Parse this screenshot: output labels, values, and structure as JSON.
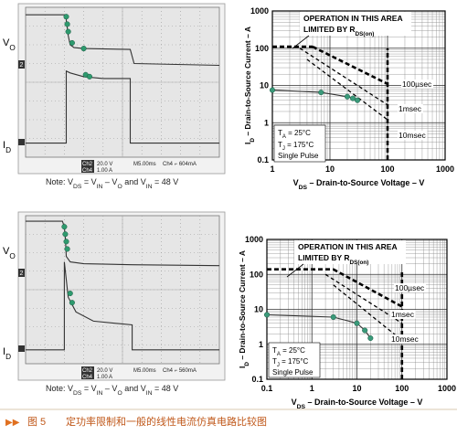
{
  "chart_data": [
    {
      "type": "scope",
      "grid_divisions": [
        10,
        8
      ],
      "xlim": [
        0,
        10
      ],
      "ylim": [
        0,
        8
      ],
      "trace_labels": [
        [
          {
            "text": "V"
          },
          {
            "text": "O",
            "sub": true
          }
        ],
        [
          {
            "text": "I"
          },
          {
            "text": "D",
            "sub": true
          }
        ]
      ],
      "channel_marker": "2",
      "readout": [
        "Ch2",
        "20.0 V",
        "M5.00ms",
        "Ch4 ⌐ 604mA",
        "Ch4",
        "1.00 A"
      ],
      "note": [
        {
          "text": "Note: V"
        },
        {
          "text": "DS",
          "sub": true
        },
        {
          "text": " = V"
        },
        {
          "text": "IN",
          "sub": true
        },
        {
          "text": " – V"
        },
        {
          "text": "O",
          "sub": true
        },
        {
          "text": " and V"
        },
        {
          "text": "IN",
          "sub": true
        },
        {
          "text": " = 48 V"
        }
      ],
      "series": [
        {
          "color": "#333333",
          "line_style": "solid",
          "x": [
            0,
            2.1,
            2.1,
            2.15,
            2.2,
            2.3,
            2.5,
            3,
            5.4,
            5.6,
            10
          ],
          "values": [
            7.6,
            7.6,
            7.3,
            6.9,
            6.5,
            6.0,
            5.85,
            5.8,
            5.75,
            5.0,
            4.9
          ]
        },
        {
          "color": "#333333",
          "line_style": "solid",
          "x": [
            0,
            2.1,
            2.1,
            2.3,
            3,
            4,
            5.4,
            5.4,
            10
          ],
          "values": [
            0.75,
            0.75,
            4.6,
            4.5,
            4.3,
            4.2,
            4.2,
            0.75,
            0.75
          ]
        },
        {
          "color": "#2e9a6e",
          "line_style": "none",
          "markers": true,
          "x": [
            2.1,
            2.15,
            2.2,
            2.4,
            3.0,
            3.1,
            3.3
          ],
          "values": [
            7.5,
            7.1,
            6.7,
            6.1,
            5.8,
            4.4,
            4.3
          ]
        }
      ]
    },
    {
      "type": "soa",
      "log_x": true,
      "log_y": true,
      "grid": true,
      "xlim": [
        1,
        1000
      ],
      "ylim": [
        0.1,
        1000
      ],
      "xticks": [
        1,
        10,
        100,
        1000
      ],
      "yticks": [
        0.1,
        1,
        10,
        100,
        1000
      ],
      "xlabel": [
        {
          "text": "V"
        },
        {
          "text": "DS",
          "sub": true
        },
        {
          "text": " – Drain-to-Source Voltage – V"
        }
      ],
      "ylabel": [
        {
          "text": "I"
        },
        {
          "text": "D",
          "sub": true
        },
        {
          "text": " – Drain-to-Source Current – A"
        }
      ],
      "annotations": [
        [
          {
            "text": "OPERATION IN THIS AREA"
          }
        ],
        [
          {
            "text": "LIMITED BY R"
          },
          {
            "text": "DS(on)",
            "sub": true
          }
        ],
        [
          {
            "text": "100µsec"
          }
        ],
        [
          {
            "text": "1msec"
          }
        ],
        [
          {
            "text": "10msec"
          }
        ],
        [
          {
            "text": "T"
          },
          {
            "text": "A",
            "sub": true
          },
          {
            "text": " = 25°C"
          }
        ],
        [
          {
            "text": "T"
          },
          {
            "text": "J",
            "sub": true
          },
          {
            "text": " = 175°C"
          }
        ],
        [
          {
            "text": "Single Pulse"
          }
        ]
      ],
      "series": [
        {
          "color": "#000000",
          "line_style": "dashed-thick",
          "x": [
            1,
            5
          ],
          "values": [
            110,
            110
          ]
        },
        {
          "color": "#000000",
          "line_style": "dashed-thick",
          "x": [
            5,
            100
          ],
          "values": [
            110,
            11
          ]
        },
        {
          "color": "#000000",
          "line_style": "dashed",
          "x": [
            3,
            100
          ],
          "values": [
            100,
            3
          ]
        },
        {
          "color": "#000000",
          "line_style": "dashed",
          "x": [
            4,
            100
          ],
          "values": [
            50,
            1.2
          ]
        },
        {
          "color": "#000000",
          "line_style": "dashed-thick",
          "x": [
            100,
            100
          ],
          "values": [
            0.1,
            100
          ]
        },
        {
          "color": "#333333",
          "marker_color": "#3a9a7a",
          "line_style": "solid",
          "markers": true,
          "x": [
            1,
            7,
            20,
            25,
            30
          ],
          "values": [
            7.5,
            6.5,
            5,
            4.5,
            4
          ]
        }
      ]
    },
    {
      "type": "scope",
      "grid_divisions": [
        10,
        8
      ],
      "xlim": [
        0,
        10
      ],
      "ylim": [
        0,
        8
      ],
      "trace_labels": [
        [
          {
            "text": "V"
          },
          {
            "text": "O",
            "sub": true
          }
        ],
        [
          {
            "text": "I"
          },
          {
            "text": "D",
            "sub": true
          }
        ]
      ],
      "channel_marker": "2",
      "readout": [
        "Ch2",
        "20.0 V",
        "M5.00ms",
        "Ch4 ⌐ 560mA",
        "Ch4",
        "1.00 A"
      ],
      "note": [
        {
          "text": "Note: V"
        },
        {
          "text": "DS",
          "sub": true
        },
        {
          "text": " = V"
        },
        {
          "text": "IN",
          "sub": true
        },
        {
          "text": " – V"
        },
        {
          "text": "O",
          "sub": true
        },
        {
          "text": " and V"
        },
        {
          "text": "IN",
          "sub": true
        },
        {
          "text": " = 48 V"
        }
      ],
      "series": [
        {
          "color": "#333333",
          "line_style": "solid",
          "x": [
            0,
            1.9,
            2.0,
            2.05,
            2.1,
            2.3,
            3,
            5.5,
            10
          ],
          "values": [
            7.7,
            7.7,
            7.4,
            6.8,
            5.8,
            5.5,
            5.4,
            5.35,
            5.3
          ]
        },
        {
          "color": "#333333",
          "line_style": "solid",
          "x": [
            0,
            2.0,
            2.0,
            2.2,
            2.6,
            3.5,
            5.5,
            5.5,
            10
          ],
          "values": [
            0.75,
            0.75,
            5.5,
            3.6,
            2.8,
            2.3,
            2.1,
            0.75,
            0.75
          ]
        },
        {
          "color": "#2e9a6e",
          "line_style": "none",
          "markers": true,
          "x": [
            2.0,
            2.05,
            2.1,
            2.15,
            2.3,
            2.4
          ],
          "values": [
            7.4,
            7.0,
            6.6,
            6.2,
            3.8,
            3.3
          ]
        }
      ]
    },
    {
      "type": "soa",
      "log_x": true,
      "log_y": true,
      "grid": true,
      "xlim": [
        0.1,
        1000
      ],
      "ylim": [
        0.1,
        1000
      ],
      "xticks": [
        0.1,
        1,
        10,
        100,
        1000
      ],
      "yticks": [
        0.1,
        1,
        10,
        100,
        1000
      ],
      "xlabel": [
        {
          "text": "V"
        },
        {
          "text": "DS",
          "sub": true
        },
        {
          "text": " – Drain-to-Source Voltage – V"
        }
      ],
      "ylabel": [
        {
          "text": "I"
        },
        {
          "text": "D",
          "sub": true
        },
        {
          "text": " – Drain-to-Source Current – A"
        }
      ],
      "annotations": [
        [
          {
            "text": "OPERATION IN THIS AREA"
          }
        ],
        [
          {
            "text": "LIMITED BY R"
          },
          {
            "text": "DS(on)",
            "sub": true
          }
        ],
        [
          {
            "text": "100µsec"
          }
        ],
        [
          {
            "text": "1msec"
          }
        ],
        [
          {
            "text": "10msec"
          }
        ],
        [
          {
            "text": "T"
          },
          {
            "text": "A",
            "sub": true
          },
          {
            "text": " = 25°C"
          }
        ],
        [
          {
            "text": "T"
          },
          {
            "text": "J",
            "sub": true
          },
          {
            "text": " = 175°C"
          }
        ],
        [
          {
            "text": "Single Pulse"
          }
        ]
      ],
      "series": [
        {
          "color": "#000000",
          "line_style": "dashed-thick",
          "x": [
            0.1,
            3
          ],
          "values": [
            140,
            140
          ]
        },
        {
          "color": "#000000",
          "line_style": "dashed-thick",
          "x": [
            3,
            100
          ],
          "values": [
            140,
            12
          ]
        },
        {
          "color": "#000000",
          "line_style": "dashed",
          "x": [
            2,
            100
          ],
          "values": [
            100,
            4
          ]
        },
        {
          "color": "#000000",
          "line_style": "dashed",
          "x": [
            3,
            100
          ],
          "values": [
            50,
            1.3
          ]
        },
        {
          "color": "#000000",
          "line_style": "dashed-thick",
          "x": [
            100,
            100
          ],
          "values": [
            0.1,
            130
          ]
        },
        {
          "color": "#333333",
          "marker_color": "#3a9a7a",
          "line_style": "solid",
          "markers": true,
          "x": [
            0.1,
            3,
            10,
            15,
            20
          ],
          "values": [
            7,
            6,
            4,
            2.5,
            1.5
          ]
        }
      ]
    }
  ],
  "caption": {
    "marker": "▶▶",
    "label": "图 5",
    "text": "定功率限制和一般的线性电流仿真电路比较图"
  }
}
